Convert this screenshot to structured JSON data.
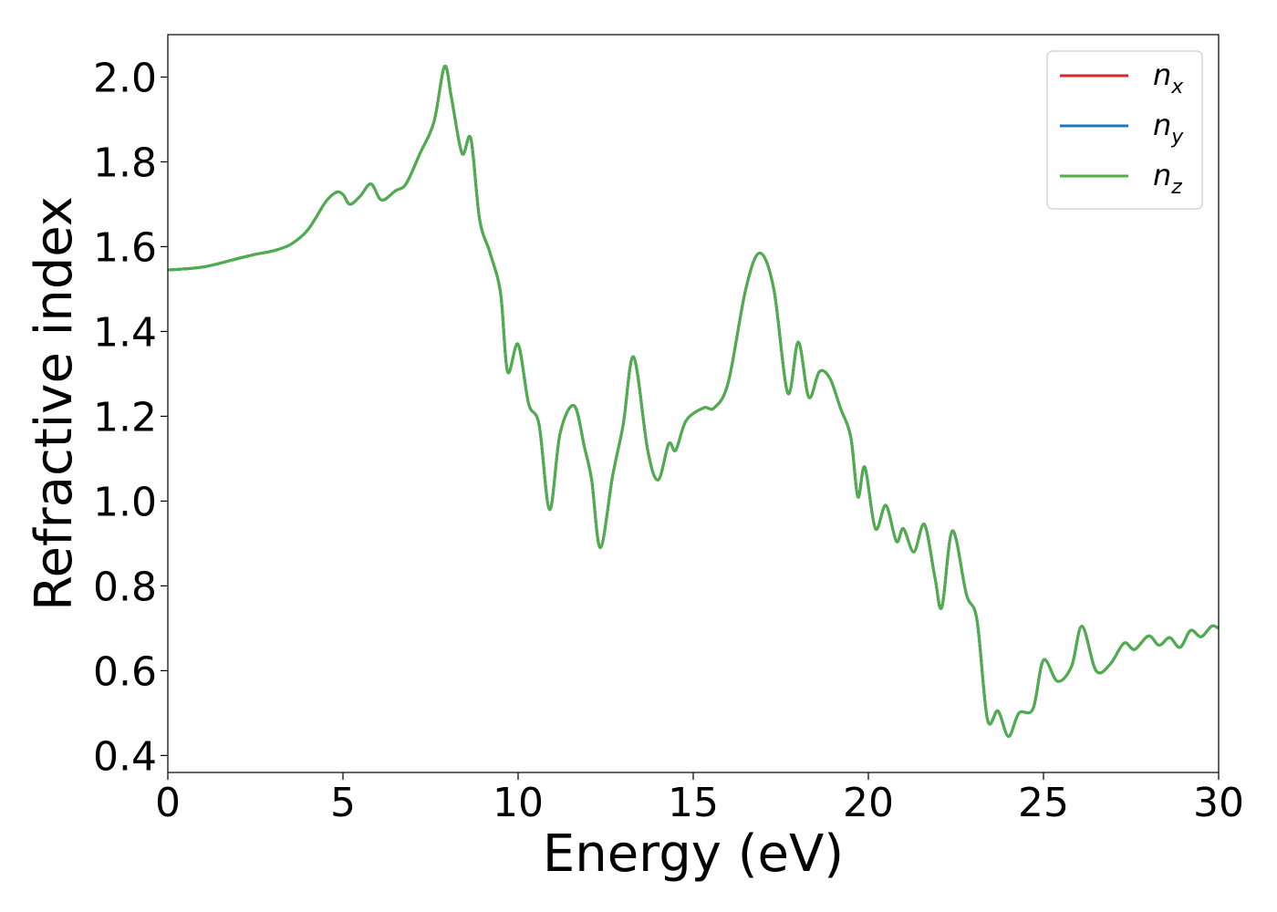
{
  "chart_data": {
    "type": "line",
    "title": "",
    "xlabel": "Energy (eV)",
    "ylabel": "Refractive index",
    "xlim": [
      0,
      30
    ],
    "ylim": [
      0.36,
      2.1
    ],
    "xticks": [
      0,
      5,
      10,
      15,
      20,
      25,
      30
    ],
    "xtick_labels": [
      "0",
      "5",
      "10",
      "15",
      "20",
      "25",
      "30"
    ],
    "yticks": [
      0.4,
      0.6,
      0.8,
      1.0,
      1.2,
      1.4,
      1.6,
      1.8,
      2.0
    ],
    "ytick_labels": [
      "0.4",
      "0.6",
      "0.8",
      "1.0",
      "1.2",
      "1.4",
      "1.6",
      "1.8",
      "2.0"
    ],
    "grid": false,
    "legend_position": "top-right",
    "x": [
      0,
      1,
      2,
      2.5,
      3,
      3.5,
      4,
      4.5,
      4.8,
      5.0,
      5.2,
      5.5,
      5.8,
      6.1,
      6.5,
      6.8,
      7.2,
      7.6,
      7.9,
      8.1,
      8.4,
      8.65,
      8.9,
      9.2,
      9.5,
      9.7,
      10.0,
      10.3,
      10.6,
      10.9,
      11.2,
      11.6,
      11.9,
      12.1,
      12.35,
      12.7,
      13.0,
      13.3,
      13.7,
      14.0,
      14.3,
      14.5,
      14.8,
      15.3,
      15.6,
      16.0,
      16.5,
      16.9,
      17.3,
      17.7,
      18.0,
      18.3,
      18.6,
      18.9,
      19.2,
      19.5,
      19.7,
      19.9,
      20.2,
      20.5,
      20.8,
      21.0,
      21.3,
      21.6,
      21.9,
      22.1,
      22.4,
      22.8,
      23.1,
      23.4,
      23.7,
      24.0,
      24.3,
      24.7,
      25.0,
      25.4,
      25.8,
      26.1,
      26.5,
      26.9,
      27.3,
      27.6,
      28.0,
      28.3,
      28.6,
      28.9,
      29.2,
      29.5,
      29.8,
      30.0
    ],
    "series": [
      {
        "name": "n_x",
        "color": "#d62728",
        "values": [
          1.545,
          1.552,
          1.572,
          1.582,
          1.59,
          1.605,
          1.64,
          1.705,
          1.728,
          1.723,
          1.7,
          1.72,
          1.748,
          1.71,
          1.732,
          1.748,
          1.82,
          1.895,
          2.025,
          1.95,
          1.82,
          1.855,
          1.665,
          1.585,
          1.49,
          1.305,
          1.37,
          1.23,
          1.18,
          0.98,
          1.16,
          1.225,
          1.125,
          1.05,
          0.89,
          1.06,
          1.18,
          1.34,
          1.12,
          1.05,
          1.135,
          1.12,
          1.19,
          1.22,
          1.22,
          1.28,
          1.5,
          1.585,
          1.5,
          1.255,
          1.375,
          1.245,
          1.305,
          1.29,
          1.22,
          1.15,
          1.01,
          1.08,
          0.935,
          0.99,
          0.905,
          0.935,
          0.88,
          0.945,
          0.82,
          0.75,
          0.93,
          0.78,
          0.72,
          0.485,
          0.505,
          0.445,
          0.5,
          0.51,
          0.625,
          0.575,
          0.61,
          0.705,
          0.6,
          0.615,
          0.665,
          0.65,
          0.682,
          0.66,
          0.678,
          0.655,
          0.695,
          0.68,
          0.705,
          0.7
        ]
      },
      {
        "name": "n_y",
        "color": "#1f77b4",
        "values": [
          1.545,
          1.552,
          1.572,
          1.582,
          1.59,
          1.605,
          1.64,
          1.705,
          1.728,
          1.723,
          1.7,
          1.72,
          1.748,
          1.71,
          1.732,
          1.748,
          1.82,
          1.895,
          2.025,
          1.95,
          1.82,
          1.855,
          1.665,
          1.585,
          1.49,
          1.305,
          1.37,
          1.23,
          1.18,
          0.98,
          1.16,
          1.225,
          1.125,
          1.05,
          0.89,
          1.06,
          1.18,
          1.34,
          1.12,
          1.05,
          1.135,
          1.12,
          1.19,
          1.22,
          1.22,
          1.28,
          1.5,
          1.585,
          1.5,
          1.255,
          1.375,
          1.245,
          1.305,
          1.29,
          1.22,
          1.15,
          1.01,
          1.08,
          0.935,
          0.99,
          0.905,
          0.935,
          0.88,
          0.945,
          0.82,
          0.75,
          0.93,
          0.78,
          0.72,
          0.485,
          0.505,
          0.445,
          0.5,
          0.51,
          0.625,
          0.575,
          0.61,
          0.705,
          0.6,
          0.615,
          0.665,
          0.65,
          0.682,
          0.66,
          0.678,
          0.655,
          0.695,
          0.68,
          0.705,
          0.7
        ]
      },
      {
        "name": "n_z",
        "color": "#4daf4a",
        "values": [
          1.545,
          1.552,
          1.572,
          1.582,
          1.59,
          1.605,
          1.64,
          1.705,
          1.728,
          1.723,
          1.7,
          1.72,
          1.748,
          1.71,
          1.732,
          1.748,
          1.82,
          1.895,
          2.025,
          1.95,
          1.82,
          1.855,
          1.665,
          1.585,
          1.49,
          1.305,
          1.37,
          1.23,
          1.18,
          0.98,
          1.16,
          1.225,
          1.125,
          1.05,
          0.89,
          1.06,
          1.18,
          1.34,
          1.12,
          1.05,
          1.135,
          1.12,
          1.19,
          1.22,
          1.22,
          1.28,
          1.5,
          1.585,
          1.5,
          1.255,
          1.375,
          1.245,
          1.305,
          1.29,
          1.22,
          1.15,
          1.01,
          1.08,
          0.935,
          0.99,
          0.905,
          0.935,
          0.88,
          0.945,
          0.82,
          0.75,
          0.93,
          0.78,
          0.72,
          0.485,
          0.505,
          0.445,
          0.5,
          0.51,
          0.625,
          0.575,
          0.61,
          0.705,
          0.6,
          0.615,
          0.665,
          0.65,
          0.682,
          0.66,
          0.678,
          0.655,
          0.695,
          0.68,
          0.705,
          0.7
        ]
      }
    ],
    "legend": [
      {
        "base": "n",
        "sub": "x",
        "color": "#d62728"
      },
      {
        "base": "n",
        "sub": "y",
        "color": "#1f77b4"
      },
      {
        "base": "n",
        "sub": "z",
        "color": "#4daf4a"
      }
    ]
  }
}
